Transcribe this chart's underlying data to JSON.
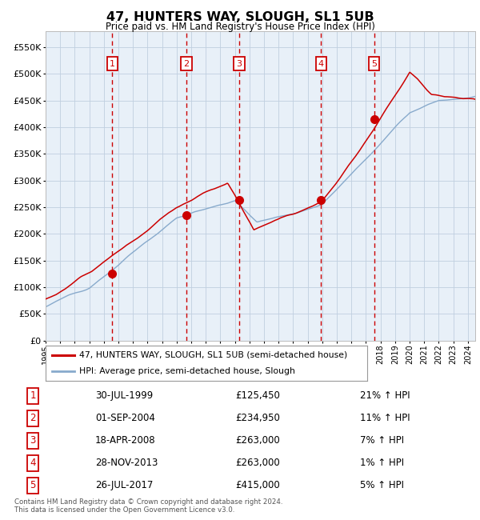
{
  "title": "47, HUNTERS WAY, SLOUGH, SL1 5UB",
  "subtitle": "Price paid vs. HM Land Registry's House Price Index (HPI)",
  "legend_line1": "47, HUNTERS WAY, SLOUGH, SL1 5UB (semi-detached house)",
  "legend_line2": "HPI: Average price, semi-detached house, Slough",
  "footnote1": "Contains HM Land Registry data © Crown copyright and database right 2024.",
  "footnote2": "This data is licensed under the Open Government Licence v3.0.",
  "transactions": [
    {
      "num": 1,
      "date": "30-JUL-1999",
      "price": 125450,
      "pct": "21%",
      "year": 1999.58
    },
    {
      "num": 2,
      "date": "01-SEP-2004",
      "price": 234950,
      "pct": "11%",
      "year": 2004.67
    },
    {
      "num": 3,
      "date": "18-APR-2008",
      "price": 263000,
      "pct": "7%",
      "year": 2008.3
    },
    {
      "num": 4,
      "date": "28-NOV-2013",
      "price": 263000,
      "pct": "1%",
      "year": 2013.91
    },
    {
      "num": 5,
      "date": "26-JUL-2017",
      "price": 415000,
      "pct": "5%",
      "year": 2017.57
    }
  ],
  "ylim": [
    0,
    580000
  ],
  "xlim_start": 1995.0,
  "xlim_end": 2024.5,
  "plot_bg": "#e8f0f8",
  "red_line": "#cc0000",
  "blue_line": "#88aacc",
  "marker_color": "#cc0000",
  "dashed_color": "#cc0000",
  "grid_color": "#c0cfe0",
  "box_color": "#cc0000"
}
